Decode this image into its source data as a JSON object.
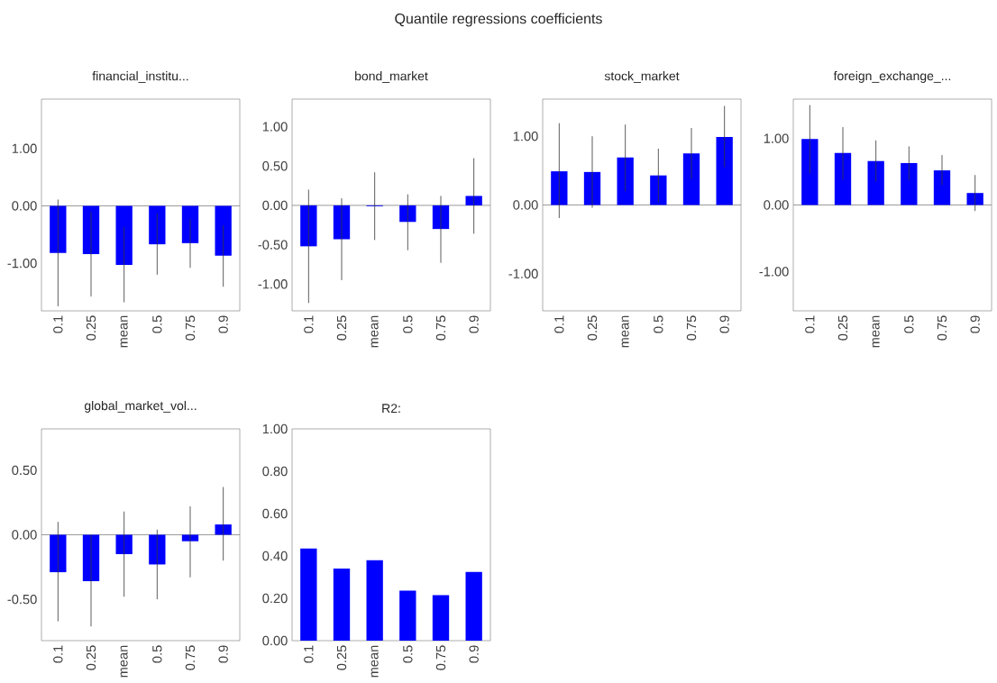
{
  "chart_data": [
    {
      "type": "bar",
      "title": "financial_institu...",
      "annotations": [
        "Quantile regressions coefficients"
      ],
      "categories": [
        "0.1",
        "0.25",
        "mean",
        "0.5",
        "0.75",
        "0.9"
      ],
      "color": "#0000ff",
      "values": [
        -0.82,
        -0.84,
        -1.03,
        -0.67,
        -0.65,
        -0.87
      ],
      "errors": [
        [
          -1.75,
          0.11
        ],
        [
          -1.58,
          -0.1
        ],
        [
          -1.68,
          -0.37
        ],
        [
          -1.2,
          -0.13
        ],
        [
          -1.08,
          -0.23
        ],
        [
          -1.41,
          -0.34
        ]
      ],
      "ylim": [
        -1.83,
        1.86
      ],
      "yticks": [
        {
          "value": -1,
          "label": "-1.00"
        },
        {
          "value": 0,
          "label": "0.00"
        },
        {
          "value": 1,
          "label": "1.00"
        }
      ],
      "ref_lines": [
        {
          "axis": "y",
          "value": 0,
          "color": "#808080"
        }
      ]
    },
    {
      "type": "bar",
      "title": "bond_market",
      "categories": [
        "0.1",
        "0.25",
        "mean",
        "0.5",
        "0.75",
        "0.9"
      ],
      "color": "#0000ff",
      "values": [
        -0.52,
        -0.43,
        -0.01,
        -0.21,
        -0.3,
        0.12
      ],
      "errors": [
        [
          -1.24,
          0.2
        ],
        [
          -0.95,
          0.09
        ],
        [
          -0.44,
          0.42
        ],
        [
          -0.57,
          0.14
        ],
        [
          -0.73,
          0.12
        ],
        [
          -0.36,
          0.6
        ]
      ],
      "ylim": [
        -1.34,
        1.35
      ],
      "yticks": [
        {
          "value": -1,
          "label": "-1.00"
        },
        {
          "value": -0.5,
          "label": "-0.50"
        },
        {
          "value": 0,
          "label": "0.00"
        },
        {
          "value": 0.5,
          "label": "0.50"
        },
        {
          "value": 1,
          "label": "1.00"
        }
      ],
      "ref_lines": [
        {
          "axis": "y",
          "value": 0,
          "color": "#808080"
        }
      ]
    },
    {
      "type": "bar",
      "title": "stock_market",
      "categories": [
        "0.1",
        "0.25",
        "mean",
        "0.5",
        "0.75",
        "0.9"
      ],
      "color": "#0000ff",
      "values": [
        0.49,
        0.48,
        0.69,
        0.43,
        0.75,
        0.99
      ],
      "errors": [
        [
          -0.19,
          1.19
        ],
        [
          -0.04,
          1.0
        ],
        [
          0.2,
          1.17
        ],
        [
          0.03,
          0.82
        ],
        [
          0.38,
          1.12
        ],
        [
          0.55,
          1.44
        ]
      ],
      "ylim": [
        -1.54,
        1.54
      ],
      "yticks": [
        {
          "value": -1,
          "label": "-1.00"
        },
        {
          "value": 0,
          "label": "0.00"
        },
        {
          "value": 1,
          "label": "1.00"
        }
      ],
      "ref_lines": [
        {
          "axis": "y",
          "value": 0,
          "color": "#808080"
        }
      ]
    },
    {
      "type": "bar",
      "title": "foreign_exchange_...",
      "categories": [
        "0.1",
        "0.25",
        "mean",
        "0.5",
        "0.75",
        "0.9"
      ],
      "color": "#0000ff",
      "values": [
        0.99,
        0.78,
        0.66,
        0.63,
        0.52,
        0.18
      ],
      "errors": [
        [
          0.47,
          1.5
        ],
        [
          0.38,
          1.17
        ],
        [
          0.35,
          0.97
        ],
        [
          0.37,
          0.88
        ],
        [
          0.3,
          0.75
        ],
        [
          -0.09,
          0.45
        ]
      ],
      "ylim": [
        -1.59,
        1.59
      ],
      "yticks": [
        {
          "value": -1,
          "label": "-1.00"
        },
        {
          "value": 0,
          "label": "0.00"
        },
        {
          "value": 1,
          "label": "1.00"
        }
      ],
      "ref_lines": [
        {
          "axis": "y",
          "value": 0,
          "color": "#808080"
        }
      ]
    },
    {
      "type": "bar",
      "title": "global_market_vol...",
      "categories": [
        "0.1",
        "0.25",
        "mean",
        "0.5",
        "0.75",
        "0.9"
      ],
      "color": "#0000ff",
      "values": [
        -0.29,
        -0.36,
        -0.15,
        -0.23,
        -0.05,
        0.08
      ],
      "errors": [
        [
          -0.67,
          0.1
        ],
        [
          -0.71,
          0.0
        ],
        [
          -0.48,
          0.18
        ],
        [
          -0.5,
          0.04
        ],
        [
          -0.33,
          0.22
        ],
        [
          -0.2,
          0.37
        ]
      ],
      "ylim": [
        -0.82,
        0.82
      ],
      "yticks": [
        {
          "value": -0.5,
          "label": "-0.50"
        },
        {
          "value": 0,
          "label": "0.00"
        },
        {
          "value": 0.5,
          "label": "0.50"
        }
      ],
      "ref_lines": [
        {
          "axis": "y",
          "value": 0,
          "color": "#808080"
        }
      ]
    },
    {
      "type": "bar",
      "title": "R2:",
      "categories": [
        "0.1",
        "0.25",
        "mean",
        "0.5",
        "0.75",
        "0.9"
      ],
      "color": "#0000ff",
      "values": [
        0.435,
        0.34,
        0.38,
        0.236,
        0.215,
        0.324
      ],
      "ylim": [
        0,
        1
      ],
      "yticks": [
        {
          "value": 0,
          "label": "0.00"
        },
        {
          "value": 0.2,
          "label": "0.20"
        },
        {
          "value": 0.4,
          "label": "0.40"
        },
        {
          "value": 0.6,
          "label": "0.60"
        },
        {
          "value": 0.8,
          "label": "0.80"
        },
        {
          "value": 1,
          "label": "1.00"
        }
      ]
    }
  ]
}
